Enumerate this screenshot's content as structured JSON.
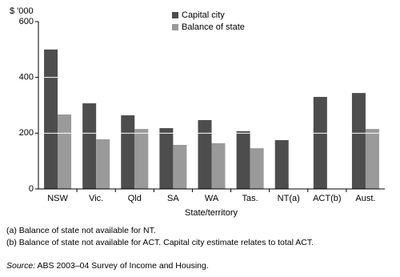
{
  "chart_data": {
    "type": "bar",
    "y_axis_label": "$ '000",
    "x_axis_label": "State/territory",
    "categories": [
      "NSW",
      "Vic.",
      "Qld",
      "SA",
      "WA",
      "Tas.",
      "NT(a)",
      "ACT(b)",
      "Aust."
    ],
    "series": [
      {
        "name": "Capital city",
        "color": "#4d4d4d",
        "values": [
          500,
          307,
          264,
          218,
          247,
          207,
          175,
          330,
          344
        ]
      },
      {
        "name": "Balance of state",
        "color": "#9a9a9a",
        "values": [
          267,
          178,
          215,
          158,
          164,
          146,
          null,
          null,
          215
        ]
      }
    ],
    "ylim": [
      0,
      600
    ],
    "yticks": [
      0,
      200,
      400,
      600
    ],
    "grid": true,
    "grid_color": "#ffffff",
    "footnotes": [
      "(a) Balance of state not available for NT.",
      "(b) Balance of state not available for ACT. Capital city estimate relates to total ACT."
    ],
    "source_label": "Source:",
    "source_text": "ABS 2003–04 Survey of Income and Housing."
  }
}
